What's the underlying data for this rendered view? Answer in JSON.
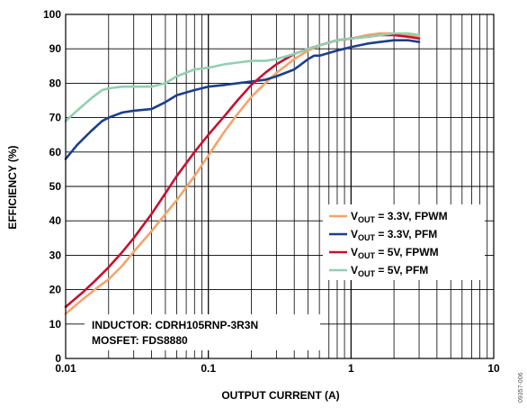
{
  "chart_data": {
    "type": "line",
    "xscale": "log",
    "xlim": [
      0.01,
      10
    ],
    "ylim": [
      0,
      100
    ],
    "grid": true,
    "xlabel": "OUTPUT CURRENT (A)",
    "ylabel": "EFFICIENCY (%)",
    "xticks": [
      {
        "value": 0.01,
        "label": "0.01"
      },
      {
        "value": 0.1,
        "label": "0.1"
      },
      {
        "value": 1,
        "label": "1"
      },
      {
        "value": 10,
        "label": "10"
      }
    ],
    "yticks": [
      0,
      10,
      20,
      30,
      40,
      50,
      60,
      70,
      80,
      90,
      100
    ],
    "legend_position": "right",
    "series": [
      {
        "name_main": "V",
        "name_sub": "OUT",
        "name_rest": " = 3.3V, FPWM",
        "color": "#f4a46c",
        "x": [
          0.01,
          0.013,
          0.016,
          0.02,
          0.025,
          0.03,
          0.04,
          0.05,
          0.06,
          0.08,
          0.1,
          0.13,
          0.16,
          0.2,
          0.25,
          0.3,
          0.4,
          0.5,
          0.6,
          0.8,
          1,
          1.3,
          1.6,
          2,
          2.5,
          3
        ],
        "y": [
          13,
          17,
          20,
          23,
          27,
          31,
          37,
          42,
          46,
          53,
          59,
          66,
          71,
          76,
          80,
          83,
          87,
          89.5,
          91,
          92.5,
          93,
          94,
          94.5,
          94.5,
          94,
          93.5
        ]
      },
      {
        "name_main": "V",
        "name_sub": "OUT",
        "name_rest": " = 3.3V, PFM",
        "color": "#1b3f8b",
        "x": [
          0.01,
          0.012,
          0.015,
          0.018,
          0.02,
          0.025,
          0.03,
          0.04,
          0.05,
          0.06,
          0.08,
          0.1,
          0.13,
          0.16,
          0.2,
          0.25,
          0.3,
          0.4,
          0.5,
          0.55,
          0.6,
          0.8,
          1,
          1.3,
          1.6,
          2,
          2.5,
          3
        ],
        "y": [
          58,
          62,
          66,
          69,
          70,
          71.5,
          72,
          72.5,
          74.5,
          76.5,
          78,
          79,
          79.5,
          80,
          80.5,
          81,
          82,
          84,
          87,
          88,
          88,
          89.5,
          90.5,
          91.5,
          92,
          92.5,
          92.5,
          92
        ]
      },
      {
        "name_main": "V",
        "name_sub": "OUT",
        "name_rest": " = 5V, FPWM",
        "color": "#c8102e",
        "x": [
          0.01,
          0.013,
          0.016,
          0.02,
          0.025,
          0.03,
          0.04,
          0.05,
          0.06,
          0.08,
          0.1,
          0.13,
          0.16,
          0.2,
          0.25,
          0.3,
          0.4,
          0.5,
          0.6,
          0.8,
          1,
          1.3,
          1.6,
          2,
          2.5,
          3
        ],
        "y": [
          15,
          19,
          22.5,
          26.5,
          31,
          35,
          42,
          48,
          53,
          60,
          65,
          70.5,
          75,
          79.5,
          83,
          85.5,
          88.5,
          90,
          91,
          92.5,
          93,
          93.5,
          94,
          94,
          93.5,
          93
        ]
      },
      {
        "name_main": "V",
        "name_sub": "OUT",
        "name_rest": " = 5V, PFM",
        "color": "#93cfb0",
        "x": [
          0.01,
          0.012,
          0.015,
          0.018,
          0.02,
          0.025,
          0.03,
          0.04,
          0.05,
          0.06,
          0.08,
          0.1,
          0.13,
          0.16,
          0.2,
          0.25,
          0.3,
          0.4,
          0.5,
          0.6,
          0.8,
          1,
          1.3,
          1.6,
          2,
          2.5,
          3
        ],
        "y": [
          69,
          72,
          75.5,
          78,
          78.5,
          79,
          79,
          79,
          80,
          82,
          84,
          84.5,
          85.5,
          86,
          86.5,
          86.5,
          87,
          88.5,
          90,
          91,
          92.5,
          93,
          93.5,
          94,
          94.5,
          94.5,
          94
        ]
      }
    ],
    "annotation_lines": [
      "INDUCTOR: CDRH105RNP-3R3N",
      "MOSFET: FDS8880"
    ],
    "figure_id": "09357-006"
  }
}
